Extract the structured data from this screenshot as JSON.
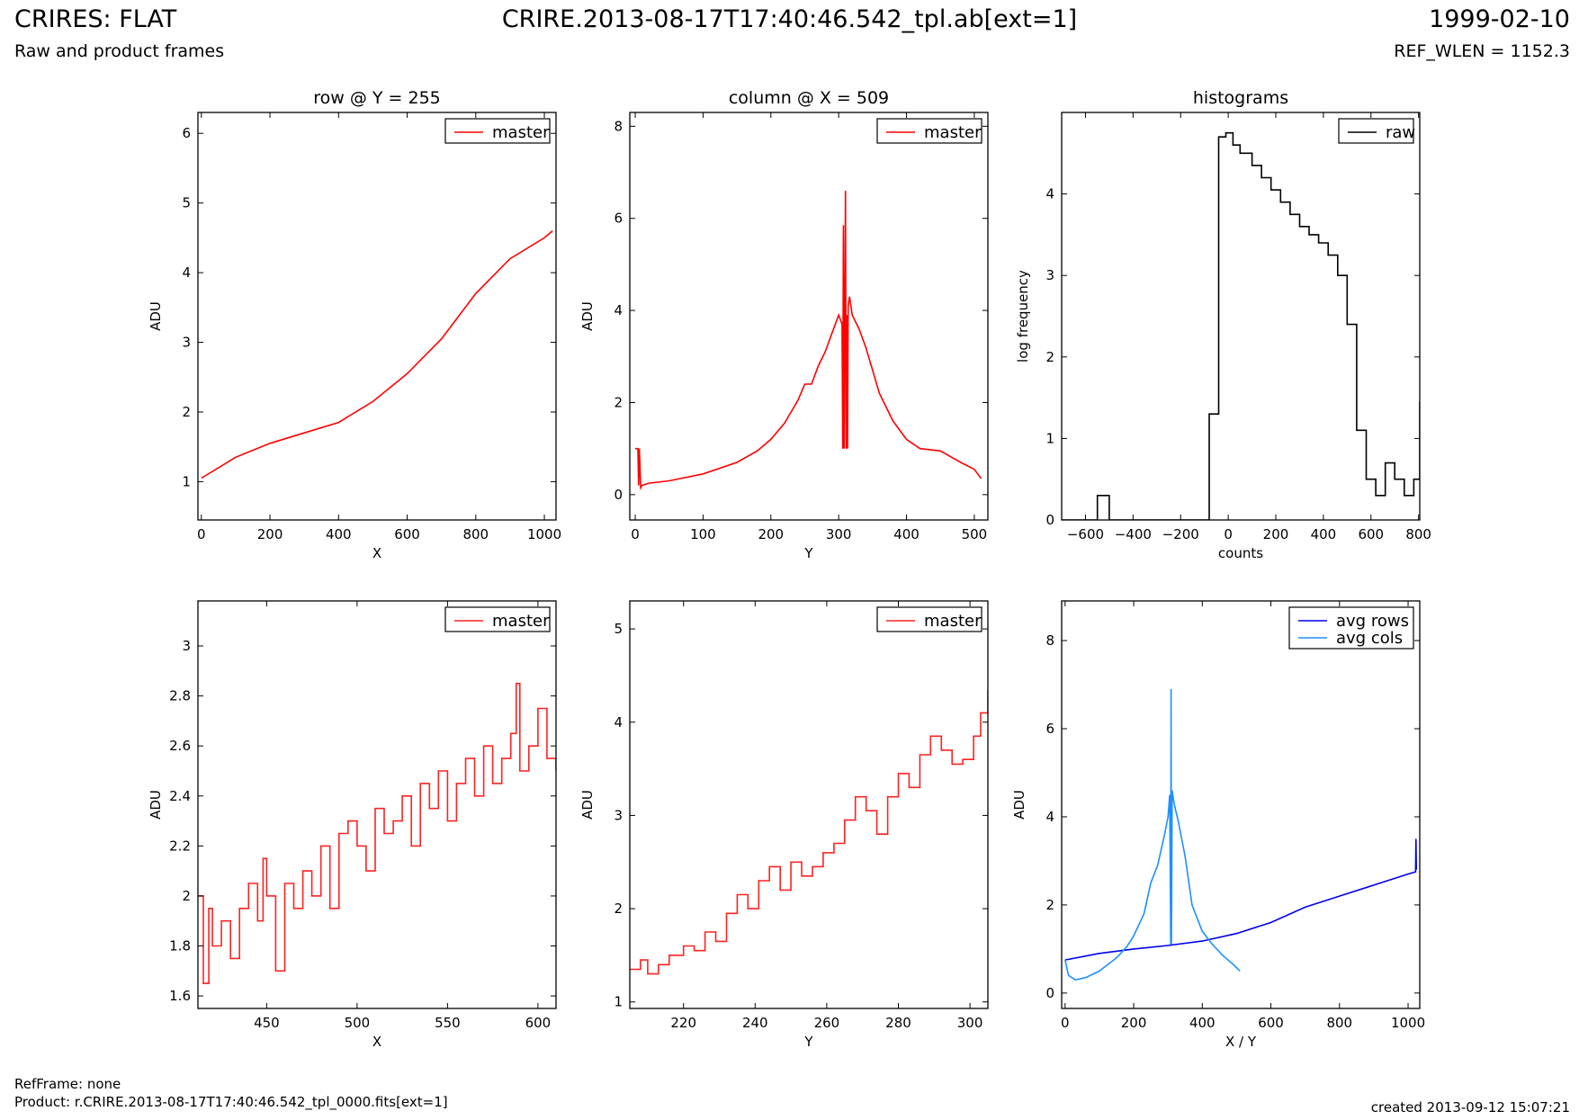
{
  "header": {
    "title": "CRIRES: FLAT",
    "subtitle": "Raw and product frames",
    "filename": "CRIRE.2013-08-17T17:40:46.542_tpl.ab[ext=1]",
    "date": "1999-02-10",
    "ref_wlen": "REF_WLEN = 1152.3"
  },
  "footer": {
    "refframe": "RefFrame: none",
    "product": "Product: r.CRIRE.2013-08-17T17:40:46.542_tpl_0000.fits[ext=1]",
    "created": "created 2013-09-12 15:07:21"
  },
  "chart_data": [
    {
      "id": "row",
      "type": "line",
      "title": "row @ Y = 255",
      "xlabel": "X",
      "ylabel": "ADU",
      "xlim": [
        -10,
        1034
      ],
      "ylim": [
        0.45,
        6.3
      ],
      "xticks": [
        0,
        200,
        400,
        600,
        800,
        1000
      ],
      "yticks": [
        1,
        2,
        3,
        4,
        5,
        6
      ],
      "grid": false,
      "legend": "top-right",
      "series": [
        {
          "name": "master",
          "color": "#ff0000",
          "x": [
            0,
            100,
            200,
            300,
            400,
            500,
            600,
            700,
            800,
            900,
            1000,
            1024
          ],
          "values": [
            1.05,
            1.35,
            1.55,
            1.7,
            1.85,
            2.15,
            2.55,
            3.05,
            3.7,
            4.2,
            4.5,
            4.6
          ]
        }
      ]
    },
    {
      "id": "column",
      "type": "line",
      "title": "column @ X = 509",
      "xlabel": "Y",
      "ylabel": "ADU",
      "xlim": [
        -8,
        520
      ],
      "ylim": [
        -0.55,
        8.3
      ],
      "xticks": [
        0,
        100,
        200,
        300,
        400,
        500
      ],
      "yticks": [
        0,
        2,
        4,
        6,
        8
      ],
      "grid": false,
      "legend": "top-right",
      "series": [
        {
          "name": "master",
          "color": "#ff0000",
          "x": [
            0,
            1,
            4,
            5,
            6,
            8,
            10,
            20,
            50,
            100,
            150,
            180,
            200,
            220,
            240,
            250,
            260,
            270,
            280,
            290,
            300,
            305,
            306,
            307,
            308,
            309,
            310,
            311,
            312,
            313,
            314,
            316,
            320,
            330,
            340,
            350,
            360,
            380,
            400,
            420,
            450,
            480,
            500,
            510
          ],
          "values": [
            1.0,
            1.0,
            1.0,
            0.2,
            1.0,
            0.15,
            0.2,
            0.25,
            0.3,
            0.45,
            0.7,
            0.95,
            1.2,
            1.55,
            2.05,
            2.4,
            2.4,
            2.8,
            3.1,
            3.5,
            3.9,
            3.7,
            1.0,
            5.85,
            1.0,
            3.8,
            6.6,
            1.0,
            3.9,
            1.0,
            4.1,
            4.3,
            3.9,
            3.6,
            3.2,
            2.7,
            2.2,
            1.6,
            1.2,
            1.0,
            0.95,
            0.7,
            0.55,
            0.35
          ]
        }
      ]
    },
    {
      "id": "histograms",
      "type": "line",
      "title": "histograms",
      "xlabel": "counts",
      "ylabel": "log frequency",
      "xlim": [
        -700,
        805
      ],
      "ylim": [
        0,
        5.0
      ],
      "xticks": [
        -600,
        -400,
        -200,
        0,
        200,
        400,
        600,
        800
      ],
      "yticks": [
        0,
        1,
        2,
        3,
        4
      ],
      "grid": false,
      "legend": "top-right",
      "series": [
        {
          "name": "raw",
          "color": "#000000",
          "step": true,
          "x": [
            -700,
            -550,
            -500,
            -80,
            -40,
            -10,
            20,
            50,
            100,
            140,
            180,
            220,
            260,
            300,
            340,
            380,
            420,
            460,
            500,
            540,
            580,
            620,
            660,
            700,
            740,
            780,
            805
          ],
          "values": [
            0,
            0.3,
            0,
            1.3,
            4.7,
            4.75,
            4.6,
            4.5,
            4.35,
            4.2,
            4.05,
            3.9,
            3.75,
            3.6,
            3.5,
            3.4,
            3.25,
            3.0,
            2.4,
            1.1,
            0.5,
            0.3,
            0.7,
            0.5,
            0.3,
            0.5,
            1.45
          ]
        }
      ]
    },
    {
      "id": "row-zoom",
      "type": "line",
      "title": "",
      "xlabel": "X",
      "ylabel": "ADU",
      "xlim": [
        412,
        610
      ],
      "ylim": [
        1.55,
        3.18
      ],
      "xticks": [
        450,
        500,
        550,
        600
      ],
      "yticks": [
        1.6,
        1.8,
        2.0,
        2.2,
        2.4,
        2.6,
        2.8,
        3.0
      ],
      "grid": false,
      "legend": "top-right",
      "series": [
        {
          "name": "master",
          "color": "#ff2222",
          "step": true,
          "x": [
            412,
            415,
            418,
            420,
            425,
            430,
            435,
            440,
            445,
            448,
            450,
            455,
            460,
            465,
            470,
            475,
            480,
            485,
            490,
            495,
            500,
            505,
            510,
            515,
            520,
            525,
            530,
            535,
            540,
            545,
            550,
            555,
            560,
            565,
            570,
            575,
            580,
            585,
            588,
            590,
            595,
            600,
            605,
            610
          ],
          "values": [
            2.0,
            1.65,
            1.95,
            1.8,
            1.9,
            1.75,
            1.95,
            2.05,
            1.9,
            2.15,
            2.0,
            1.7,
            2.05,
            1.95,
            2.1,
            2.0,
            2.2,
            1.95,
            2.25,
            2.3,
            2.2,
            2.1,
            2.35,
            2.25,
            2.3,
            2.4,
            2.2,
            2.45,
            2.35,
            2.5,
            2.3,
            2.45,
            2.55,
            2.4,
            2.6,
            2.45,
            2.55,
            2.65,
            2.85,
            2.5,
            2.6,
            2.75,
            2.55,
            2.5
          ]
        }
      ]
    },
    {
      "id": "column-zoom",
      "type": "line",
      "title": "",
      "xlabel": "Y",
      "ylabel": "ADU",
      "xlim": [
        205,
        305
      ],
      "ylim": [
        0.93,
        5.3
      ],
      "xticks": [
        220,
        240,
        260,
        280,
        300
      ],
      "yticks": [
        1,
        2,
        3,
        4,
        5
      ],
      "grid": false,
      "legend": "top-right",
      "series": [
        {
          "name": "master",
          "color": "#ff2222",
          "step": true,
          "x": [
            205,
            208,
            210,
            213,
            216,
            220,
            223,
            226,
            229,
            232,
            235,
            238,
            241,
            244,
            247,
            250,
            253,
            256,
            259,
            262,
            265,
            268,
            271,
            274,
            277,
            280,
            283,
            286,
            289,
            292,
            295,
            298,
            301,
            303,
            305
          ],
          "values": [
            1.35,
            1.45,
            1.3,
            1.4,
            1.5,
            1.6,
            1.55,
            1.75,
            1.65,
            1.95,
            2.15,
            2.0,
            2.3,
            2.45,
            2.2,
            2.5,
            2.35,
            2.45,
            2.6,
            2.7,
            2.95,
            3.2,
            3.05,
            2.8,
            3.2,
            3.45,
            3.3,
            3.65,
            3.85,
            3.7,
            3.55,
            3.6,
            3.85,
            4.1,
            4.35
          ]
        }
      ]
    },
    {
      "id": "averages",
      "type": "line",
      "title": "",
      "xlabel": "X / Y",
      "ylabel": "ADU",
      "xlim": [
        -10,
        1034
      ],
      "ylim": [
        -0.35,
        8.9
      ],
      "xticks": [
        0,
        200,
        400,
        600,
        800,
        1000
      ],
      "yticks": [
        0,
        2,
        4,
        6,
        8
      ],
      "grid": false,
      "legend": "top-right",
      "series": [
        {
          "name": "avg rows",
          "color": "#0000ee",
          "x": [
            0,
            100,
            200,
            300,
            400,
            500,
            600,
            700,
            800,
            900,
            1000,
            1022,
            1023,
            1024
          ],
          "values": [
            0.75,
            0.9,
            1.0,
            1.08,
            1.18,
            1.35,
            1.6,
            1.95,
            2.2,
            2.45,
            2.7,
            2.75,
            3.5,
            2.8
          ]
        },
        {
          "name": "avg cols",
          "color": "#1e90ff",
          "x": [
            0,
            10,
            30,
            60,
            100,
            150,
            180,
            200,
            230,
            250,
            270,
            290,
            300,
            305,
            308,
            309,
            310,
            312,
            318,
            330,
            350,
            370,
            400,
            430,
            460,
            490,
            510
          ],
          "values": [
            0.75,
            0.4,
            0.3,
            0.35,
            0.5,
            0.8,
            1.05,
            1.3,
            1.8,
            2.5,
            2.9,
            3.6,
            4.0,
            4.5,
            1.1,
            6.9,
            1.1,
            4.6,
            4.3,
            3.9,
            3.1,
            2.0,
            1.4,
            1.1,
            0.85,
            0.65,
            0.5
          ]
        }
      ]
    }
  ]
}
